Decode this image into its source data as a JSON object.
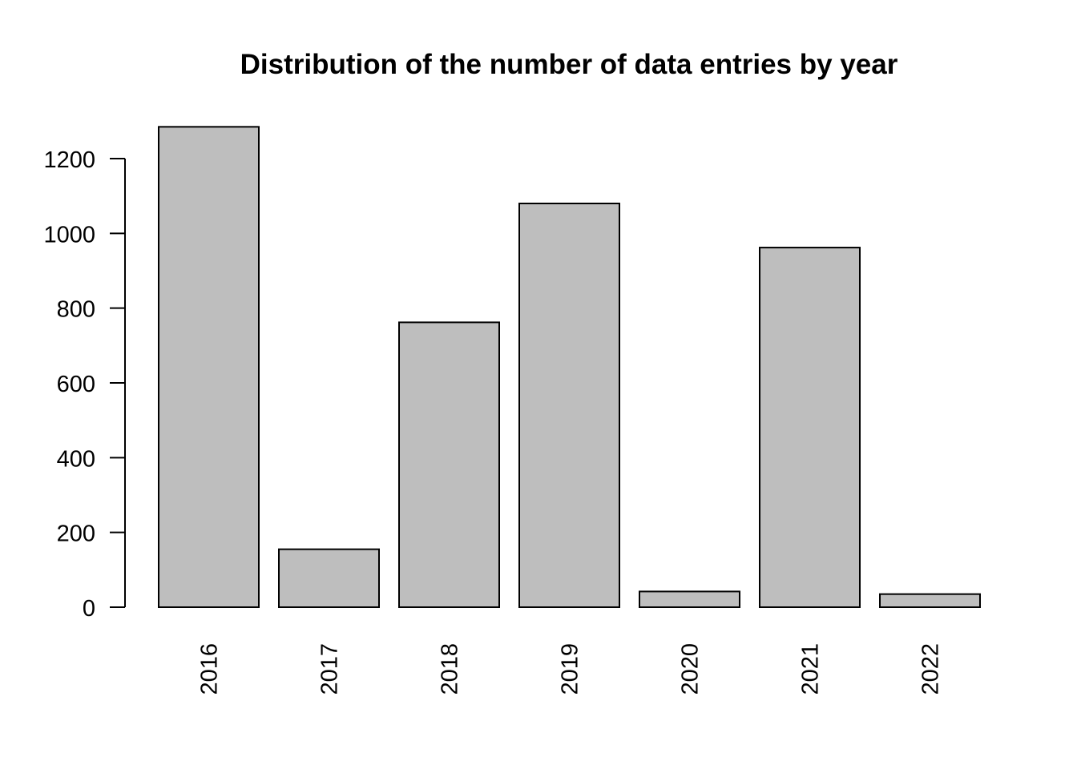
{
  "chart_data": {
    "type": "bar",
    "title": "Distribution of the number of data entries by year",
    "xlabel": "",
    "ylabel": "",
    "categories": [
      "2016",
      "2017",
      "2018",
      "2019",
      "2020",
      "2021",
      "2022"
    ],
    "values": [
      1285,
      155,
      762,
      1080,
      42,
      962,
      35
    ],
    "ylim": [
      0,
      1200
    ],
    "yticks": [
      0,
      200,
      400,
      600,
      800,
      1000,
      1200
    ],
    "x_tick_rotation": "vertical",
    "grid": false,
    "legend": "none",
    "colors": {
      "bar_fill": "#bebebe",
      "bar_stroke": "#000000"
    }
  }
}
